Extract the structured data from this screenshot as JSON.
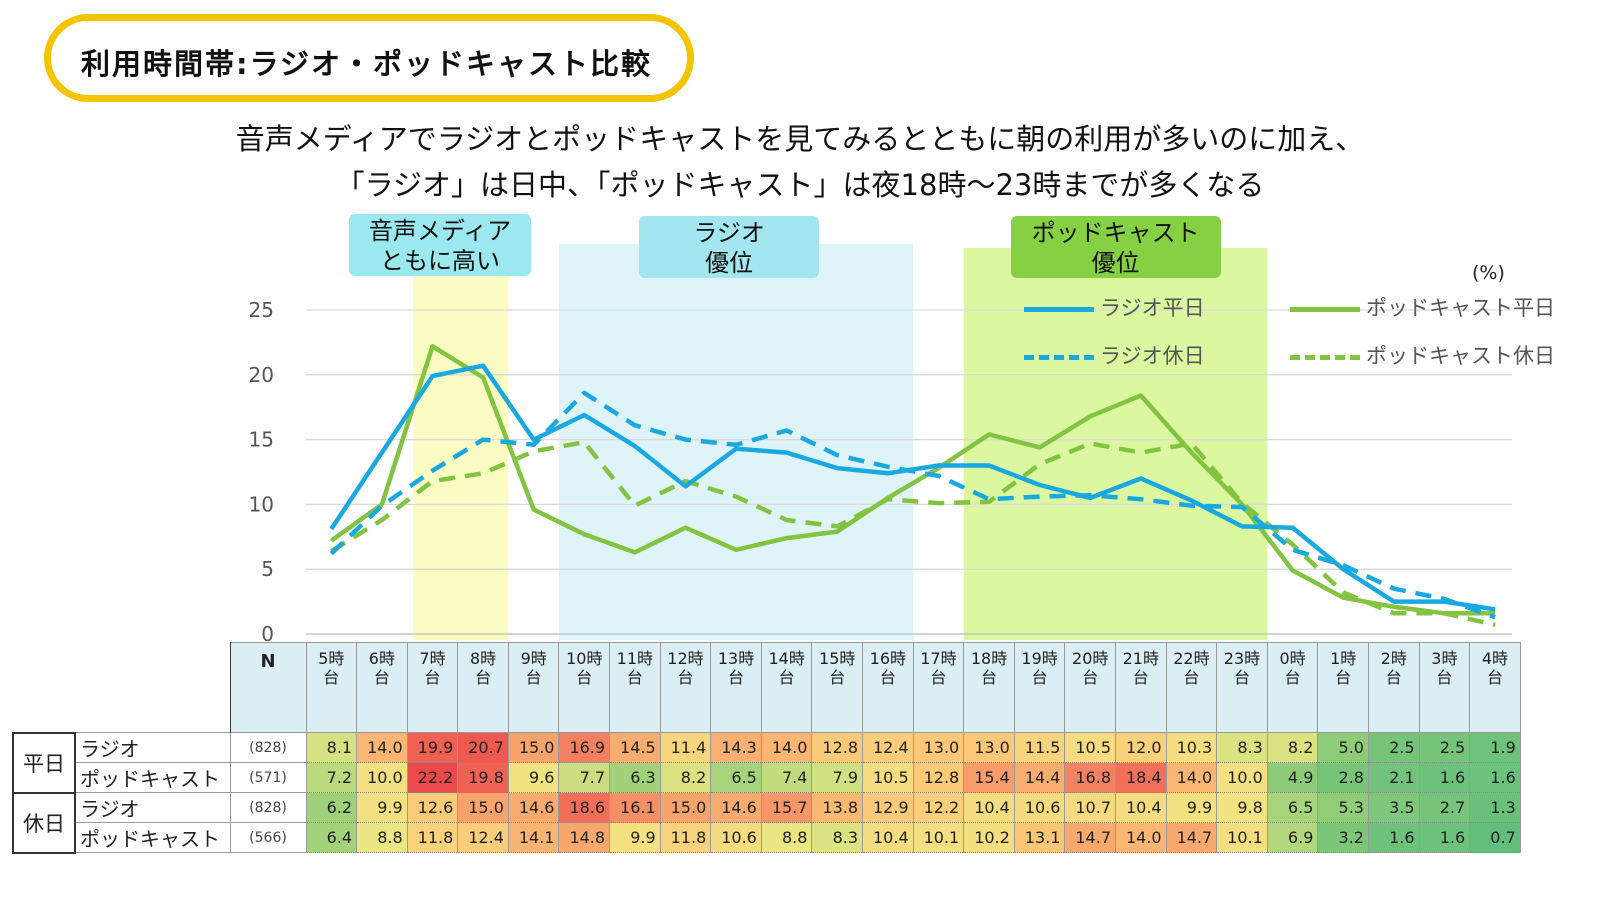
{
  "title": "利用時間帯:ラジオ・ポッドキャスト比較",
  "subtitle_line1": "音声メディアでラジオとポッドキャストを見てみるとともに朝の利用が多いのに加え、",
  "subtitle_line2": "「ラジオ」は日中、「ポッドキャスト」は夜18時～23時までが多くなる",
  "highlights": {
    "morning": {
      "line1": "音声メディア",
      "line2": "ともに高い",
      "color": "#fafcc4",
      "label_color": "#9be8ef"
    },
    "daytime": {
      "line1": "ラジオ",
      "line2": "優位",
      "color": "#dff4f8",
      "label_color": "#a4e6ef"
    },
    "evening": {
      "line1": "ポッドキャスト",
      "line2": "優位",
      "color": "#dbf8a0",
      "label_color": "#86d043"
    }
  },
  "unit_label": "(%)",
  "legend": {
    "radio_weekday": "ラジオ平日",
    "podcast_weekday": "ポッドキャスト平日",
    "radio_holiday": "ラジオ休日",
    "podcast_holiday": "ポッドキャスト休日"
  },
  "colors": {
    "radio": "#1aa8e0",
    "podcast": "#82c341"
  },
  "table": {
    "n_header": "N",
    "group_weekday": "平日",
    "group_holiday": "休日",
    "rows": [
      {
        "series": "ラジオ",
        "n": "(828)"
      },
      {
        "series": "ポッドキャスト",
        "n": "(571)"
      },
      {
        "series": "ラジオ",
        "n": "(828)"
      },
      {
        "series": "ポッドキャスト",
        "n": "(566)"
      }
    ]
  },
  "chart_data": {
    "type": "line",
    "title": "利用時間帯:ラジオ・ポッドキャスト比較",
    "xlabel": "",
    "ylabel": "(%)",
    "ylim": [
      0,
      25
    ],
    "yticks": [
      0,
      5,
      10,
      15,
      20,
      25
    ],
    "categories": [
      "5時台",
      "6時台",
      "7時台",
      "8時台",
      "9時台",
      "10時台",
      "11時台",
      "12時台",
      "13時台",
      "14時台",
      "15時台",
      "16時台",
      "17時台",
      "18時台",
      "19時台",
      "20時台",
      "21時台",
      "22時台",
      "23時台",
      "0時台",
      "1時台",
      "2時台",
      "3時台",
      "4時台"
    ],
    "category_labels": [
      [
        "5時",
        "台"
      ],
      [
        "6時",
        "台"
      ],
      [
        "7時",
        "台"
      ],
      [
        "8時",
        "台"
      ],
      [
        "9時",
        "台"
      ],
      [
        "10時",
        "台"
      ],
      [
        "11時",
        "台"
      ],
      [
        "12時",
        "台"
      ],
      [
        "13時",
        "台"
      ],
      [
        "14時",
        "台"
      ],
      [
        "15時",
        "台"
      ],
      [
        "16時",
        "台"
      ],
      [
        "17時",
        "台"
      ],
      [
        "18時",
        "台"
      ],
      [
        "19時",
        "台"
      ],
      [
        "20時",
        "台"
      ],
      [
        "21時",
        "台"
      ],
      [
        "22時",
        "台"
      ],
      [
        "23時",
        "台"
      ],
      [
        "0時",
        "台"
      ],
      [
        "1時",
        "台"
      ],
      [
        "2時",
        "台"
      ],
      [
        "3時",
        "台"
      ],
      [
        "4時",
        "台"
      ]
    ],
    "series": [
      {
        "name": "ラジオ平日",
        "color": "#1aa8e0",
        "dash": false,
        "values": [
          8.1,
          14.0,
          19.9,
          20.7,
          15.0,
          16.9,
          14.5,
          11.4,
          14.3,
          14.0,
          12.8,
          12.4,
          13.0,
          13.0,
          11.5,
          10.5,
          12.0,
          10.3,
          8.3,
          8.2,
          5.0,
          2.5,
          2.5,
          1.9
        ]
      },
      {
        "name": "ポッドキャスト平日",
        "color": "#82c341",
        "dash": false,
        "values": [
          7.2,
          10.0,
          22.2,
          19.8,
          9.6,
          7.7,
          6.3,
          8.2,
          6.5,
          7.4,
          7.9,
          10.5,
          12.8,
          15.4,
          14.4,
          16.8,
          18.4,
          14.0,
          10.0,
          4.9,
          2.8,
          2.1,
          1.6,
          1.6
        ]
      },
      {
        "name": "ラジオ休日",
        "color": "#1aa8e0",
        "dash": true,
        "values": [
          6.2,
          9.9,
          12.6,
          15.0,
          14.6,
          18.6,
          16.1,
          15.0,
          14.6,
          15.7,
          13.8,
          12.9,
          12.2,
          10.4,
          10.6,
          10.7,
          10.4,
          9.9,
          9.8,
          6.5,
          5.3,
          3.5,
          2.7,
          1.3
        ]
      },
      {
        "name": "ポッドキャスト休日",
        "color": "#82c341",
        "dash": true,
        "values": [
          6.4,
          8.8,
          11.8,
          12.4,
          14.1,
          14.8,
          9.9,
          11.8,
          10.6,
          8.8,
          8.3,
          10.4,
          10.1,
          10.2,
          13.1,
          14.7,
          14.0,
          14.7,
          10.1,
          6.9,
          3.2,
          1.6,
          1.6,
          0.7
        ]
      }
    ],
    "highlight_ranges": [
      [
        "7時台",
        "8時台"
      ],
      [
        "10時台",
        "16時台"
      ],
      [
        "18時台",
        "23時台"
      ]
    ]
  }
}
